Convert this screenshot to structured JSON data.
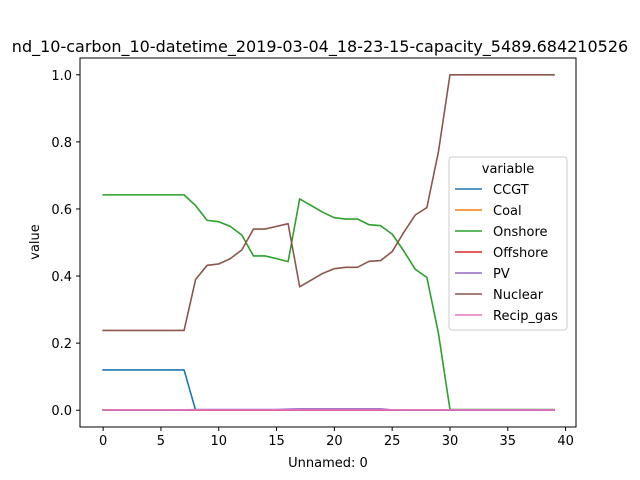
{
  "chart_data": {
    "type": "line",
    "title": "nd_10-carbon_10-datetime_2019-03-04_18-23-15-capacity_5489.684210526",
    "xlabel": "Unnamed: 0",
    "ylabel": "value",
    "xlim": [
      -2,
      40.9
    ],
    "ylim": [
      -0.05,
      1.05
    ],
    "xticks": [
      0,
      5,
      10,
      15,
      20,
      25,
      30,
      35,
      40
    ],
    "yticks": [
      0.0,
      0.2,
      0.4,
      0.6,
      0.8,
      1.0
    ],
    "xtick_labels": [
      "0",
      "5",
      "10",
      "15",
      "20",
      "25",
      "30",
      "35",
      "40"
    ],
    "ytick_labels": [
      "0.0",
      "0.2",
      "0.4",
      "0.6",
      "0.8",
      "1.0"
    ],
    "grid": false,
    "legend": {
      "title": "variable",
      "position": "center-right"
    },
    "x": [
      0,
      1,
      2,
      3,
      4,
      5,
      6,
      7,
      8,
      9,
      10,
      11,
      12,
      13,
      14,
      15,
      16,
      17,
      18,
      19,
      20,
      21,
      22,
      23,
      24,
      25,
      26,
      27,
      28,
      29,
      30,
      31,
      32,
      33,
      34,
      35,
      36,
      37,
      38,
      39
    ],
    "series": [
      {
        "name": "CCGT",
        "color": "#1f77b4",
        "values": [
          0.12,
          0.12,
          0.12,
          0.12,
          0.12,
          0.12,
          0.12,
          0.12,
          0,
          0,
          0,
          0,
          0,
          0,
          0,
          0,
          0,
          0,
          0,
          0,
          0,
          0,
          0,
          0,
          0,
          0,
          0,
          0,
          0,
          0,
          0,
          0,
          0,
          0,
          0,
          0,
          0,
          0,
          0,
          0
        ]
      },
      {
        "name": "Coal",
        "color": "#ff7f0e",
        "values": [
          0,
          0,
          0,
          0,
          0,
          0,
          0,
          0,
          0,
          0,
          0,
          0,
          0,
          0,
          0,
          0,
          0,
          0,
          0,
          0,
          0,
          0,
          0,
          0,
          0,
          0,
          0,
          0,
          0,
          0,
          0,
          0,
          0,
          0,
          0,
          0,
          0,
          0,
          0,
          0
        ]
      },
      {
        "name": "Onshore",
        "color": "#2ca02c",
        "values": [
          0.642,
          0.642,
          0.642,
          0.642,
          0.642,
          0.642,
          0.642,
          0.642,
          0.61,
          0.566,
          0.562,
          0.548,
          0.522,
          0.46,
          0.46,
          0.452,
          0.443,
          0.63,
          0.61,
          0.59,
          0.574,
          0.57,
          0.57,
          0.553,
          0.55,
          0.525,
          0.475,
          0.42,
          0.396,
          0.23,
          0.002,
          0.002,
          0.002,
          0.002,
          0.002,
          0.002,
          0.002,
          0.002,
          0.002,
          0.002
        ]
      },
      {
        "name": "Offshore",
        "color": "#d62728",
        "values": [
          0,
          0,
          0,
          0,
          0,
          0,
          0,
          0,
          0,
          0,
          0,
          0,
          0,
          0,
          0,
          0,
          0,
          0,
          0,
          0,
          0,
          0,
          0,
          0,
          0,
          0,
          0,
          0,
          0,
          0,
          0,
          0,
          0,
          0,
          0,
          0,
          0,
          0,
          0,
          0
        ]
      },
      {
        "name": "PV",
        "color": "#9467bd",
        "values": [
          0.001,
          0.001,
          0.001,
          0.001,
          0.001,
          0.001,
          0.001,
          0.001,
          0.002,
          0.002,
          0.002,
          0.002,
          0.002,
          0.002,
          0.002,
          0.002,
          0.003,
          0.004,
          0.004,
          0.004,
          0.004,
          0.004,
          0.004,
          0.004,
          0.004,
          0.001,
          0.001,
          0.001,
          0.001,
          0.001,
          0.001,
          0.001,
          0.001,
          0.001,
          0.001,
          0.001,
          0.001,
          0.001,
          0.001,
          0.001
        ]
      },
      {
        "name": "Nuclear",
        "color": "#8c564b",
        "values": [
          0.238,
          0.238,
          0.238,
          0.238,
          0.238,
          0.238,
          0.238,
          0.238,
          0.39,
          0.432,
          0.436,
          0.452,
          0.478,
          0.54,
          0.54,
          0.548,
          0.556,
          0.368,
          0.388,
          0.408,
          0.422,
          0.426,
          0.426,
          0.444,
          0.446,
          0.473,
          0.53,
          0.582,
          0.604,
          0.77,
          1.0,
          1.0,
          1.0,
          1.0,
          1.0,
          1.0,
          1.0,
          1.0,
          1.0,
          1.0
        ]
      },
      {
        "name": "Recip_gas",
        "color": "#e377c2",
        "values": [
          0.001,
          0.001,
          0.001,
          0.001,
          0.001,
          0.001,
          0.001,
          0.001,
          0.001,
          0.001,
          0.001,
          0.001,
          0.001,
          0.001,
          0.001,
          0.001,
          0.001,
          0.001,
          0.001,
          0.001,
          0.001,
          0.001,
          0.001,
          0.001,
          0.001,
          0.001,
          0.001,
          0.001,
          0.001,
          0.001,
          0.001,
          0.001,
          0.001,
          0.001,
          0.001,
          0.001,
          0.001,
          0.001,
          0.001,
          0.001
        ]
      }
    ]
  }
}
